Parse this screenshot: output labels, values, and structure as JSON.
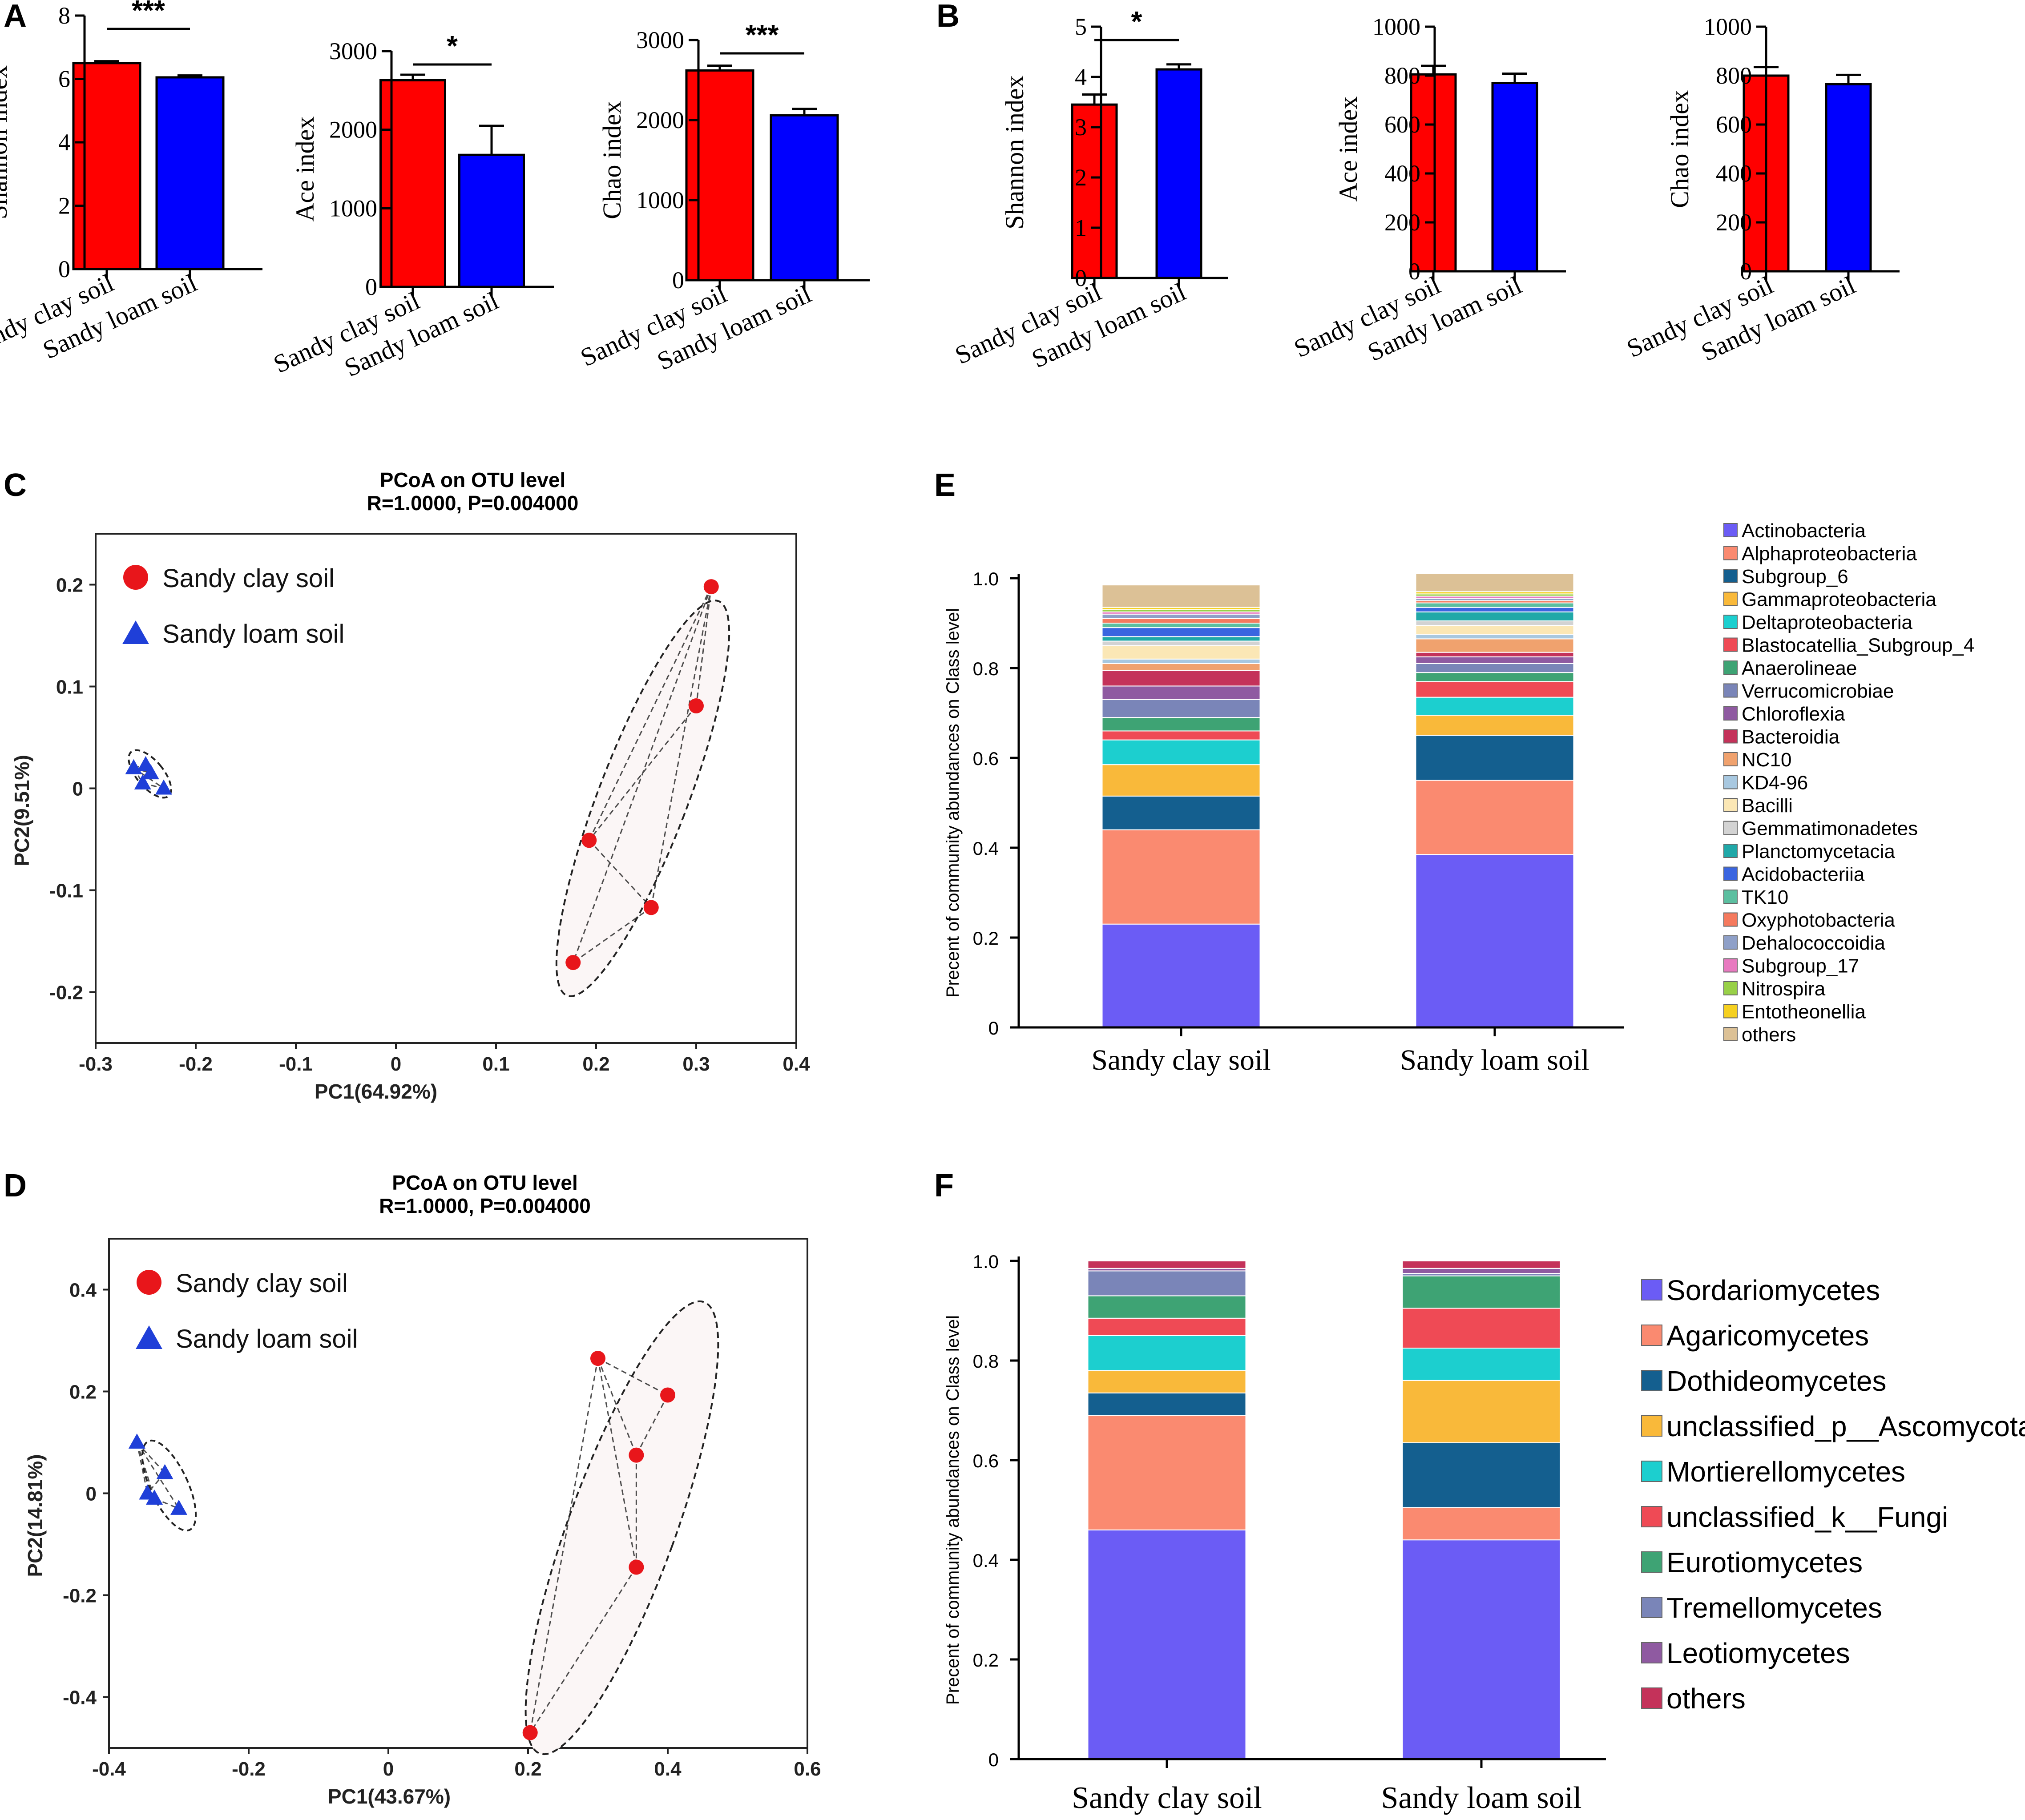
{
  "figure": {
    "panel_labels": [
      "A",
      "B",
      "C",
      "D",
      "E",
      "F"
    ]
  },
  "colors": {
    "sandy_clay": "#ff0000",
    "sandy_loam": "#0000ff",
    "pcoa_clay": "#e8161b",
    "pcoa_loam": "#1f3fd8"
  },
  "chart_data": [
    {
      "id": "A1",
      "panel": "A",
      "type": "bar",
      "categories": [
        "Sandy clay soil",
        "Sandy loam soil"
      ],
      "values": [
        6.5,
        6.05
      ],
      "errors": [
        0.06,
        0.06
      ],
      "ylabel": "Shannon index",
      "ylim": [
        0,
        8
      ],
      "yticks": [
        0,
        2,
        4,
        6,
        8
      ],
      "significance": "***"
    },
    {
      "id": "A2",
      "panel": "A",
      "type": "bar",
      "categories": [
        "Sandy clay soil",
        "Sandy loam soil"
      ],
      "values": [
        2630,
        1680
      ],
      "errors": [
        70,
        370
      ],
      "ylabel": "Ace index",
      "ylim": [
        0,
        3000
      ],
      "yticks": [
        0,
        1000,
        2000,
        3000
      ],
      "significance": "*"
    },
    {
      "id": "A3",
      "panel": "A",
      "type": "bar",
      "categories": [
        "Sandy clay soil",
        "Sandy loam soil"
      ],
      "values": [
        2620,
        2060
      ],
      "errors": [
        60,
        80
      ],
      "ylabel": "Chao index",
      "ylim": [
        0,
        3000
      ],
      "yticks": [
        0,
        1000,
        2000,
        3000
      ],
      "significance": "***"
    },
    {
      "id": "B1",
      "panel": "B",
      "type": "bar",
      "categories": [
        "Sandy clay soil",
        "Sandy loam soil"
      ],
      "values": [
        3.45,
        4.15
      ],
      "errors": [
        0.2,
        0.1
      ],
      "ylabel": "Shannon index",
      "ylim": [
        0,
        5
      ],
      "yticks": [
        0,
        1,
        2,
        3,
        4,
        5
      ],
      "significance": "*"
    },
    {
      "id": "B2",
      "panel": "B",
      "type": "bar",
      "categories": [
        "Sandy clay soil",
        "Sandy loam soil"
      ],
      "values": [
        805,
        770
      ],
      "errors": [
        35,
        38
      ],
      "ylabel": "Ace index",
      "ylim": [
        0,
        1000
      ],
      "yticks": [
        0,
        200,
        400,
        600,
        800,
        1000
      ],
      "significance": ""
    },
    {
      "id": "B3",
      "panel": "B",
      "type": "bar",
      "categories": [
        "Sandy clay soil",
        "Sandy loam soil"
      ],
      "values": [
        800,
        765
      ],
      "errors": [
        35,
        38
      ],
      "ylabel": "Chao index",
      "ylim": [
        0,
        1000
      ],
      "yticks": [
        0,
        200,
        400,
        600,
        800,
        1000
      ],
      "significance": ""
    },
    {
      "id": "C",
      "panel": "C",
      "type": "scatter",
      "title": "PCoA on OTU level",
      "subtitle": "R=1.0000, P=0.004000",
      "xlabel": "PC1(64.92%)",
      "ylabel": "PC2(9.51%)",
      "xlim": [
        -0.3,
        0.4
      ],
      "ylim": [
        -0.25,
        0.25
      ],
      "xticks": [
        -0.3,
        -0.2,
        -0.1,
        0,
        0.1,
        0.2,
        0.3,
        0.4
      ],
      "xtick_labels": [
        "-0.3",
        "-0.2",
        "-0.1",
        "0",
        "0.1",
        "0.2",
        "0.3",
        "0.4"
      ],
      "yticks": [
        -0.2,
        -0.1,
        0,
        0.1,
        0.2
      ],
      "ytick_labels": [
        "-0.2",
        "-0.1",
        "0",
        "0.1",
        "0.2"
      ],
      "legend_position": "top-left",
      "series": [
        {
          "name": "Sandy clay soil",
          "marker": "circle",
          "x": [
            0.315,
            0.3,
            0.193,
            0.255,
            0.177
          ],
          "y": [
            0.198,
            0.081,
            -0.051,
            -0.117,
            -0.171
          ]
        },
        {
          "name": "Sandy loam soil",
          "marker": "triangle",
          "x": [
            -0.262,
            -0.25,
            -0.245,
            -0.253,
            -0.232
          ],
          "y": [
            0.02,
            0.023,
            0.015,
            0.005,
            0.0
          ]
        }
      ]
    },
    {
      "id": "D",
      "panel": "D",
      "type": "scatter",
      "title": "PCoA on OTU level",
      "subtitle": "R=1.0000, P=0.004000",
      "xlabel": "PC1(43.67%)",
      "ylabel": "PC2(14.81%)",
      "xlim": [
        -0.4,
        0.6
      ],
      "ylim": [
        -0.5,
        0.5
      ],
      "xticks": [
        -0.4,
        -0.2,
        0,
        0.2,
        0.4,
        0.6
      ],
      "xtick_labels": [
        "-0.4",
        "-0.2",
        "0",
        "0.2",
        "0.4",
        "0.6"
      ],
      "yticks": [
        -0.4,
        -0.2,
        0,
        0.2,
        0.4
      ],
      "ytick_labels": [
        "-0.4",
        "-0.2",
        "0",
        "0.2",
        "0.4"
      ],
      "legend_position": "top-left",
      "series": [
        {
          "name": "Sandy clay soil",
          "marker": "circle",
          "x": [
            0.3,
            0.4,
            0.355,
            0.355,
            0.203
          ],
          "y": [
            0.265,
            0.193,
            0.075,
            -0.145,
            -0.47
          ]
        },
        {
          "name": "Sandy loam soil",
          "marker": "triangle",
          "x": [
            -0.36,
            -0.32,
            -0.345,
            -0.335,
            -0.3
          ],
          "y": [
            0.1,
            0.04,
            0.0,
            -0.01,
            -0.03
          ]
        }
      ]
    },
    {
      "id": "E",
      "panel": "E",
      "type": "bar",
      "stacked": true,
      "ylabel": "Precent of community abundances on Class level",
      "categories": [
        "Sandy clay soil",
        "Sandy loam soil"
      ],
      "ylim": [
        0,
        1.0
      ],
      "yticks": [
        0,
        0.2,
        0.4,
        0.6,
        0.8,
        1.0
      ],
      "ytick_labels": [
        "0",
        "0.2",
        "0.4",
        "0.6",
        "0.8",
        "1.0"
      ],
      "series": [
        {
          "name": "Actinobacteria",
          "color": "#6b5cf5",
          "values": [
            0.23,
            0.385
          ]
        },
        {
          "name": "Alphaproteobacteria",
          "color": "#fa8a70",
          "values": [
            0.21,
            0.165
          ]
        },
        {
          "name": "Subgroup_6",
          "color": "#145f8f",
          "values": [
            0.075,
            0.1
          ]
        },
        {
          "name": "Gammaproteobacteria",
          "color": "#f9b93a",
          "values": [
            0.07,
            0.045
          ]
        },
        {
          "name": "Deltaproteobacteria",
          "color": "#1ccfcf",
          "values": [
            0.055,
            0.04
          ]
        },
        {
          "name": "Blastocatellia_Subgroup_4",
          "color": "#ef4a55",
          "values": [
            0.02,
            0.035
          ]
        },
        {
          "name": "Anaerolineae",
          "color": "#3ea374",
          "values": [
            0.03,
            0.02
          ]
        },
        {
          "name": "Verrucomicrobiae",
          "color": "#7a85b8",
          "values": [
            0.04,
            0.02
          ]
        },
        {
          "name": "Chloroflexia",
          "color": "#8f5aa1",
          "values": [
            0.03,
            0.015
          ]
        },
        {
          "name": "Bacteroidia",
          "color": "#c4325a",
          "values": [
            0.035,
            0.01
          ]
        },
        {
          "name": "NC10",
          "color": "#f0a26e",
          "values": [
            0.015,
            0.03
          ]
        },
        {
          "name": "KD4-96",
          "color": "#a8c8e0",
          "values": [
            0.01,
            0.01
          ]
        },
        {
          "name": "Bacilli",
          "color": "#fbe7b5",
          "values": [
            0.03,
            0.02
          ]
        },
        {
          "name": "Gemmatimonadetes",
          "color": "#d3d3d3",
          "values": [
            0.01,
            0.01
          ]
        },
        {
          "name": "Planctomycetacia",
          "color": "#20a8a8",
          "values": [
            0.01,
            0.02
          ]
        },
        {
          "name": "Acidobacteriia",
          "color": "#3a65e0",
          "values": [
            0.02,
            0.01
          ]
        },
        {
          "name": "TK10",
          "color": "#5cbfa0",
          "values": [
            0.01,
            0.01
          ]
        },
        {
          "name": "Oxyphotobacteria",
          "color": "#f57a5e",
          "values": [
            0.01,
            0.005
          ]
        },
        {
          "name": "Dehalococcoidia",
          "color": "#8fa0c8",
          "values": [
            0.01,
            0.005
          ]
        },
        {
          "name": "Subgroup_17",
          "color": "#e87ac0",
          "values": [
            0.005,
            0.005
          ]
        },
        {
          "name": "Nitrospira",
          "color": "#98d048",
          "values": [
            0.005,
            0.005
          ]
        },
        {
          "name": "Entotheonellia",
          "color": "#f5d020",
          "values": [
            0.005,
            0.005
          ]
        },
        {
          "name": "others",
          "color": "#dcc196",
          "values": [
            0.05,
            0.04
          ]
        }
      ]
    },
    {
      "id": "F",
      "panel": "F",
      "type": "bar",
      "stacked": true,
      "ylabel": "Precent of community abundances on Class level",
      "categories": [
        "Sandy clay soil",
        "Sandy loam soil"
      ],
      "ylim": [
        0,
        1.0
      ],
      "yticks": [
        0,
        0.2,
        0.4,
        0.6,
        0.8,
        1.0
      ],
      "ytick_labels": [
        "0",
        "0.2",
        "0.4",
        "0.6",
        "0.8",
        "1.0"
      ],
      "series": [
        {
          "name": "Sordariomycetes",
          "color": "#6b5cf5",
          "values": [
            0.46,
            0.44
          ]
        },
        {
          "name": "Agaricomycetes",
          "color": "#fa8a70",
          "values": [
            0.23,
            0.065
          ]
        },
        {
          "name": "Dothideomycetes",
          "color": "#145f8f",
          "values": [
            0.045,
            0.13
          ]
        },
        {
          "name": "unclassified_p__Ascomycota",
          "color": "#f9b93a",
          "values": [
            0.045,
            0.125
          ]
        },
        {
          "name": "Mortierellomycetes",
          "color": "#1ccfcf",
          "values": [
            0.07,
            0.065
          ]
        },
        {
          "name": "unclassified_k__Fungi",
          "color": "#ef4a55",
          "values": [
            0.035,
            0.08
          ]
        },
        {
          "name": "Eurotiomycetes",
          "color": "#3ea374",
          "values": [
            0.045,
            0.065
          ]
        },
        {
          "name": "Tremellomycetes",
          "color": "#7a85b8",
          "values": [
            0.05,
            0.005
          ]
        },
        {
          "name": "Leotiomycetes",
          "color": "#8f5aa1",
          "values": [
            0.005,
            0.01
          ]
        },
        {
          "name": "others",
          "color": "#c4325a",
          "values": [
            0.015,
            0.015
          ]
        }
      ]
    }
  ]
}
